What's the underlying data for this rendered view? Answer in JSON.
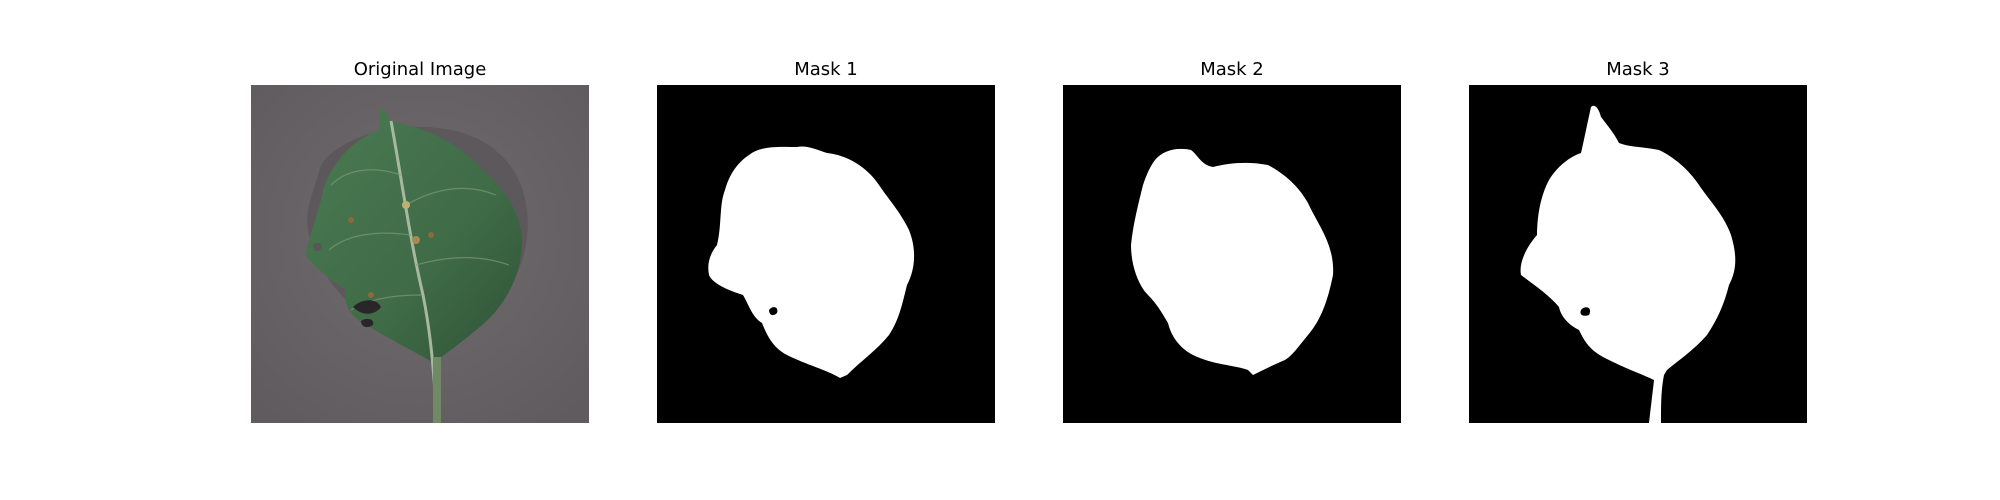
{
  "figure": {
    "panels": [
      {
        "title": "Original Image"
      },
      {
        "title": "Mask 1"
      },
      {
        "title": "Mask 2"
      },
      {
        "title": "Mask 3"
      }
    ]
  },
  "colors": {
    "background": "#ffffff",
    "leaf_fill": "#3f6b46",
    "leaf_shadow": "#2f5236",
    "photo_background": "#6e6a6d",
    "mask_background": "#000000",
    "mask_foreground": "#ffffff",
    "lesion": "#8a6a3c"
  }
}
